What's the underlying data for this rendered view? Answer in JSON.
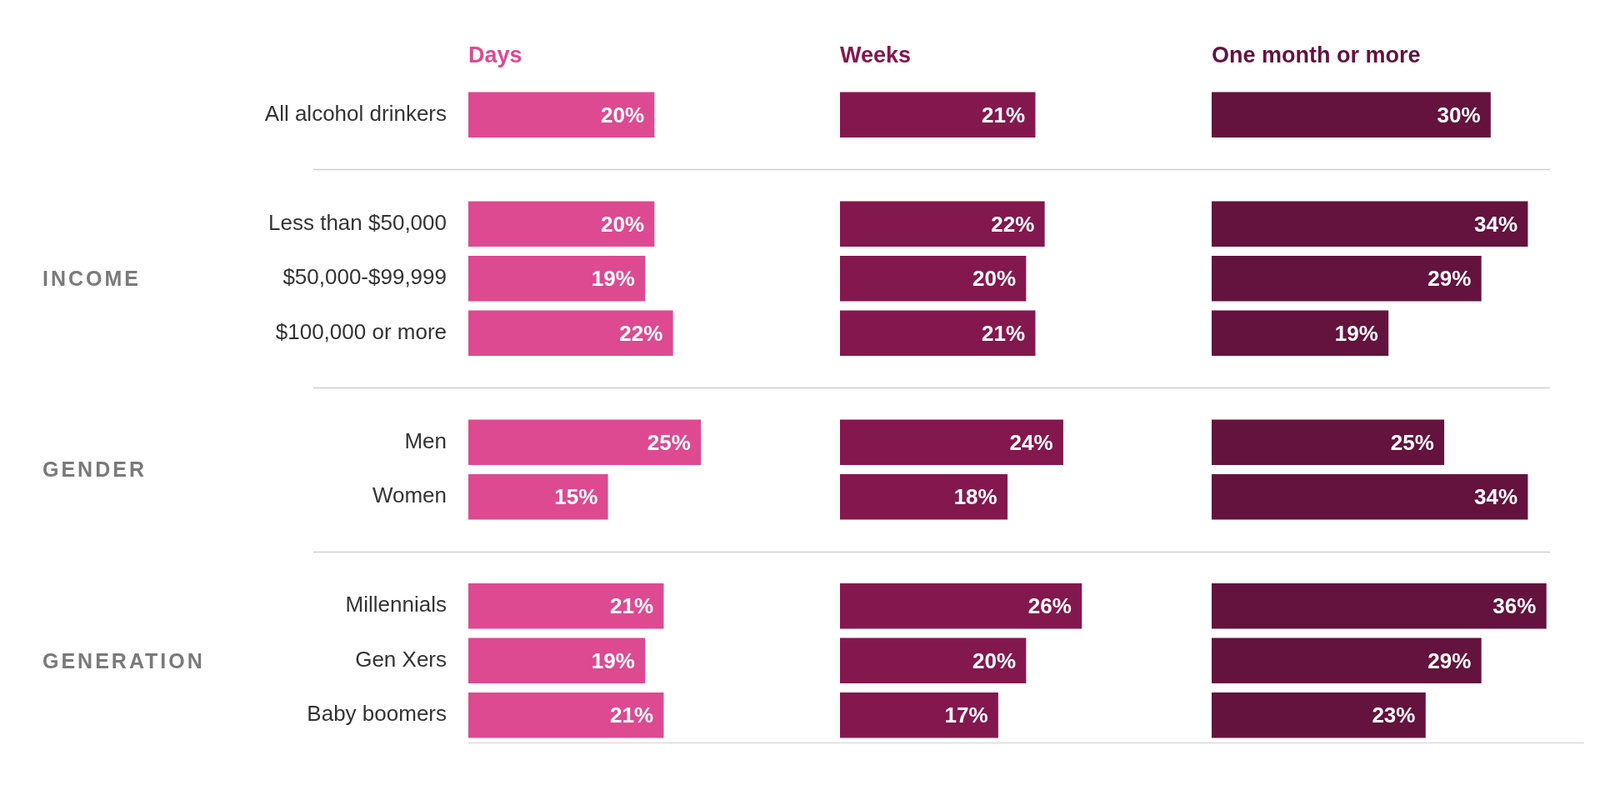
{
  "chart_data": {
    "type": "bar",
    "orientation": "horizontal",
    "categories": [
      "All alcohol drinkers",
      "Less than $50,000",
      "$50,000-$99,999",
      "$100,000 or more",
      "Men",
      "Women",
      "Millennials",
      "Gen Xers",
      "Baby boomers"
    ],
    "category_groups": [
      null,
      "INCOME",
      "INCOME",
      "INCOME",
      "GENDER",
      "GENDER",
      "GENERATION",
      "GENERATION",
      "GENERATION"
    ],
    "series": [
      {
        "name": "Days",
        "color": "#dd4a91",
        "values": [
          20,
          20,
          19,
          22,
          25,
          15,
          21,
          19,
          21
        ],
        "value_labels": [
          "20%",
          "20%",
          "19%",
          "22%",
          "25%",
          "15%",
          "21%",
          "19%",
          "21%"
        ]
      },
      {
        "name": "Weeks",
        "color": "#83184e",
        "values": [
          21,
          22,
          20,
          21,
          24,
          18,
          26,
          20,
          17
        ],
        "value_labels": [
          "21%",
          "22%",
          "20%",
          "21%",
          "24%",
          "18%",
          "26%",
          "20%",
          "17%"
        ]
      },
      {
        "name": "One month or more",
        "color": "#63133d",
        "values": [
          30,
          34,
          29,
          19,
          25,
          34,
          36,
          29,
          23
        ],
        "value_labels": [
          "30%",
          "34%",
          "29%",
          "19%",
          "25%",
          "34%",
          "36%",
          "29%",
          "23%"
        ]
      }
    ],
    "xlim": [
      0,
      40
    ],
    "grid": false,
    "data_labels": true,
    "tick_labels": "y"
  }
}
